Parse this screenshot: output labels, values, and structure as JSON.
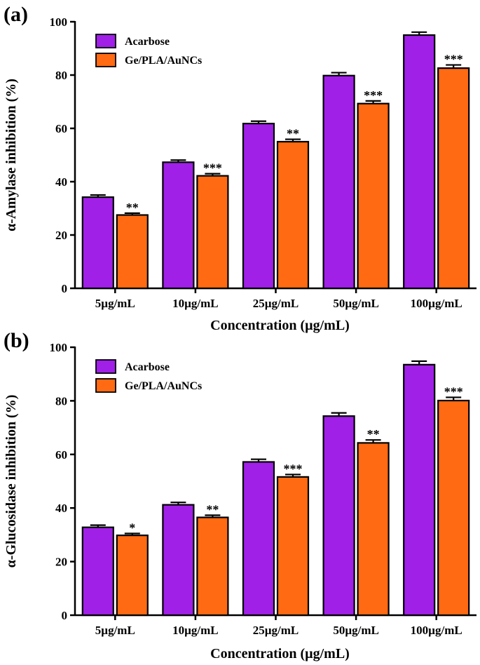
{
  "chart_data": [
    {
      "type": "bar",
      "panel_label": "(a)",
      "categories": [
        "5µg/mL",
        "10µg/mL",
        "25µg/mL",
        "50µg/mL",
        "100µg/mL"
      ],
      "series": [
        {
          "name": "Acarbose",
          "color": "#a020e8",
          "values": [
            34.2,
            47.3,
            61.8,
            79.8,
            95.0
          ],
          "errors": [
            0.8,
            0.8,
            0.9,
            1.1,
            1.1
          ]
        },
        {
          "name": "Ge/PLA/AuNCs",
          "color": "#ff6a12",
          "values": [
            27.5,
            42.2,
            55.0,
            69.3,
            82.6
          ],
          "errors": [
            0.7,
            0.8,
            0.9,
            1.0,
            1.2
          ]
        }
      ],
      "significance": [
        "**",
        "***",
        "**",
        "***",
        "***"
      ],
      "xlabel": "Concentration (µg/mL)",
      "ylabel": "α-Amylase inhibition (%)",
      "ylim": [
        0,
        100
      ],
      "yticks": [
        0,
        20,
        40,
        60,
        80,
        100
      ],
      "legend": "top-left"
    },
    {
      "type": "bar",
      "panel_label": "(b)",
      "categories": [
        "5µg/mL",
        "10µg/mL",
        "25µg/mL",
        "50µg/mL",
        "100µg/mL"
      ],
      "series": [
        {
          "name": "Acarbose",
          "color": "#a020e8",
          "values": [
            32.8,
            41.2,
            57.2,
            74.3,
            93.5
          ],
          "errors": [
            0.8,
            0.9,
            1.0,
            1.2,
            1.3
          ]
        },
        {
          "name": "Ge/PLA/AuNCs",
          "color": "#ff6a12",
          "values": [
            29.8,
            36.5,
            51.6,
            64.3,
            80.1
          ],
          "errors": [
            0.7,
            0.8,
            0.9,
            1.1,
            1.2
          ]
        }
      ],
      "significance": [
        "*",
        "**",
        "***",
        "**",
        "***"
      ],
      "xlabel": "Concentration (µg/mL)",
      "ylabel": "α-Glucosidase inhibition (%)",
      "ylim": [
        0,
        100
      ],
      "yticks": [
        0,
        20,
        40,
        60,
        80,
        100
      ],
      "legend": "top-left"
    }
  ]
}
